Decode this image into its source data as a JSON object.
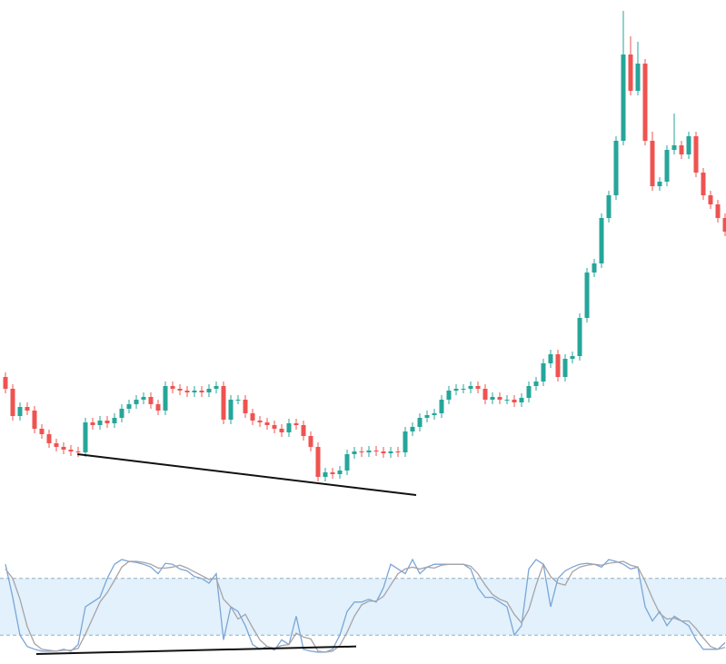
{
  "chart_data": [
    {
      "type": "candlestick",
      "up_color": "#26a69a",
      "down_color": "#ef5350",
      "ylim": [
        0,
        731
      ],
      "open": [
        316,
        303,
        273,
        283,
        279,
        259,
        253,
        243,
        239,
        236,
        234,
        233,
        266,
        263,
        268,
        265,
        271,
        281,
        286,
        291,
        294,
        286,
        279,
        306,
        303,
        301,
        299,
        301,
        299,
        303,
        306,
        269,
        291,
        291,
        276,
        268,
        266,
        263,
        259,
        255,
        265,
        263,
        251,
        239,
        206,
        211,
        209,
        213,
        231,
        234,
        233,
        235,
        234,
        232,
        234,
        233,
        256,
        261,
        271,
        274,
        276,
        291,
        301,
        303,
        303,
        306,
        303,
        291,
        294,
        291,
        291,
        288,
        293,
        306,
        311,
        331,
        341,
        316,
        336,
        339,
        381,
        431,
        441,
        491,
        516,
        576,
        671,
        631,
        661,
        576,
        526,
        531,
        566,
        571,
        561,
        581,
        541,
        516,
        506,
        491
      ],
      "high": [
        321,
        308,
        288,
        288,
        284,
        264,
        258,
        248,
        244,
        241,
        239,
        271,
        271,
        273,
        273,
        276,
        286,
        291,
        296,
        299,
        299,
        291,
        311,
        311,
        308,
        306,
        306,
        306,
        308,
        311,
        311,
        296,
        296,
        296,
        281,
        273,
        271,
        268,
        264,
        270,
        270,
        268,
        256,
        244,
        216,
        216,
        218,
        236,
        239,
        239,
        240,
        240,
        239,
        239,
        239,
        261,
        266,
        276,
        279,
        281,
        296,
        306,
        308,
        308,
        311,
        311,
        308,
        299,
        299,
        296,
        296,
        298,
        311,
        316,
        336,
        346,
        346,
        341,
        344,
        386,
        436,
        446,
        496,
        521,
        581,
        719,
        691,
        685,
        666,
        586,
        536,
        571,
        606,
        576,
        586,
        586,
        546,
        521,
        511,
        496
      ],
      "low": [
        298,
        268,
        268,
        274,
        254,
        248,
        238,
        234,
        231,
        229,
        228,
        228,
        258,
        258,
        260,
        260,
        266,
        276,
        281,
        286,
        281,
        274,
        274,
        298,
        296,
        294,
        294,
        294,
        294,
        298,
        264,
        264,
        286,
        271,
        263,
        261,
        258,
        254,
        250,
        250,
        258,
        246,
        234,
        201,
        201,
        204,
        204,
        208,
        226,
        228,
        228,
        229,
        227,
        227,
        228,
        228,
        251,
        256,
        266,
        269,
        271,
        286,
        296,
        298,
        298,
        298,
        286,
        286,
        286,
        286,
        283,
        283,
        288,
        301,
        306,
        326,
        311,
        311,
        331,
        334,
        376,
        426,
        436,
        486,
        511,
        571,
        626,
        626,
        571,
        521,
        521,
        526,
        561,
        556,
        556,
        536,
        511,
        501,
        486,
        471
      ],
      "close": [
        303,
        273,
        283,
        279,
        259,
        253,
        243,
        239,
        236,
        234,
        233,
        266,
        263,
        268,
        265,
        271,
        281,
        286,
        291,
        294,
        286,
        279,
        306,
        303,
        301,
        299,
        301,
        299,
        303,
        306,
        269,
        291,
        291,
        276,
        268,
        266,
        263,
        259,
        255,
        265,
        263,
        251,
        239,
        206,
        211,
        209,
        213,
        231,
        234,
        233,
        235,
        234,
        232,
        234,
        233,
        256,
        261,
        271,
        274,
        276,
        291,
        301,
        303,
        303,
        306,
        303,
        291,
        294,
        291,
        291,
        288,
        293,
        306,
        311,
        331,
        341,
        316,
        336,
        339,
        381,
        431,
        441,
        491,
        516,
        576,
        671,
        631,
        661,
        576,
        526,
        531,
        566,
        571,
        561,
        581,
        541,
        516,
        506,
        491,
        476
      ],
      "trendline": {
        "x": [
          9.9,
          56.5
        ],
        "values": [
          231,
          186
        ],
        "color": "#111111"
      }
    },
    {
      "type": "line",
      "ylim": [
        0,
        100
      ],
      "bands": [
        20,
        80
      ],
      "band_color": "#e2f1fb",
      "band_line_color": "#8fb0c4",
      "series": [
        {
          "color": "#7aa6d8",
          "values": [
            95,
            60,
            20,
            8,
            5,
            3,
            3,
            3,
            5,
            3,
            10,
            50,
            55,
            60,
            80,
            95,
            100,
            98,
            97,
            95,
            92,
            85,
            96,
            95,
            90,
            88,
            82,
            80,
            75,
            85,
            15,
            50,
            45,
            30,
            10,
            5,
            8,
            4,
            15,
            10,
            40,
            5,
            3,
            2,
            2,
            5,
            20,
            45,
            55,
            55,
            58,
            55,
            70,
            95,
            90,
            85,
            100,
            85,
            92,
            95,
            95,
            95,
            95,
            95,
            90,
            70,
            60,
            60,
            55,
            50,
            20,
            30,
            90,
            100,
            95,
            50,
            80,
            88,
            92,
            95,
            96,
            95,
            92,
            100,
            98,
            95,
            90,
            92,
            50,
            35,
            45,
            30,
            40,
            35,
            30,
            15,
            5,
            5,
            5,
            12
          ]
        },
        {
          "color": "#a8a3a8",
          "values": [
            90,
            80,
            58,
            29,
            11,
            5,
            4,
            3,
            4,
            4,
            6,
            21,
            38,
            55,
            65,
            78,
            92,
            98,
            98,
            97,
            95,
            91,
            91,
            92,
            94,
            91,
            87,
            83,
            79,
            80,
            58,
            50,
            37,
            42,
            28,
            15,
            8,
            6,
            9,
            10,
            22,
            18,
            16,
            3,
            2,
            3,
            9,
            23,
            40,
            52,
            56,
            56,
            61,
            73,
            85,
            90,
            92,
            90,
            92,
            91,
            94,
            95,
            95,
            95,
            93,
            85,
            73,
            63,
            58,
            55,
            42,
            33,
            47,
            73,
            95,
            82,
            75,
            73,
            87,
            92,
            94,
            95,
            94,
            96,
            97,
            98,
            94,
            92,
            77,
            59,
            43,
            37,
            38,
            35,
            35,
            27,
            17,
            8,
            5,
            7
          ]
        }
      ],
      "trendline": {
        "x": [
          4.25,
          48.25
        ],
        "values": [
          0,
          8
        ],
        "color": "#111111"
      }
    }
  ]
}
